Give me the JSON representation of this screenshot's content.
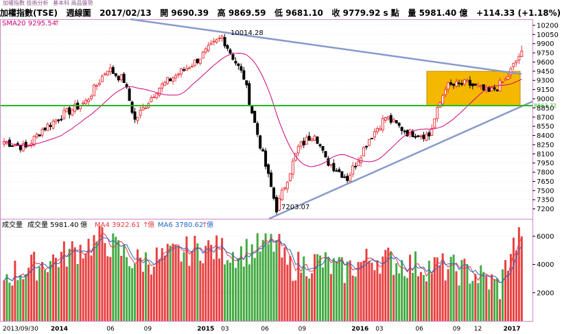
{
  "tabs": {
    "items": [
      "加權指數 技術分析",
      "基本科 商品盤勢"
    ]
  },
  "header": {
    "title": "加權指數(TSE)",
    "period": "週線圖",
    "date": "2017/02/13",
    "open_label": "開",
    "open": "9690.39",
    "high_label": "高",
    "high": "9869.59",
    "low_label": "低",
    "low": "9681.10",
    "close_label": "收",
    "close": "9779.92",
    "unit_label": "s 點",
    "volume_label": "量",
    "volume": "5981.40",
    "volume_unit": "億",
    "change": "+114.33 (+1.18%)"
  },
  "price_panel": {
    "sma_label": "SMA20 9295.54",
    "max_label": "10014.28",
    "min_label": "7203.07",
    "support_value_label": "8863.72"
  },
  "volume_panel": {
    "label1": "成交量",
    "label2": "成交量 5981.40",
    "label2_unit": "億",
    "ma4_label": "MA4 3922.61",
    "ma4_unit": "億",
    "ma6_label": "MA6 3780.62",
    "ma6_unit": "億"
  },
  "colors": {
    "up": "#e8383d",
    "down": "#000000",
    "vol_up": "#e84040",
    "vol_down": "#44aa44",
    "sma": "#d0007a",
    "support": "#22bb22",
    "trend": "#8899cc",
    "highlight": "#f5b800"
  },
  "chart_data": {
    "type": "candlestick",
    "price_axis": {
      "ticks": [
        7200,
        7350,
        7500,
        7650,
        7800,
        7950,
        8100,
        8250,
        8400,
        8550,
        8700,
        8850,
        9000,
        9150,
        9300,
        9450,
        9600,
        9750,
        9900,
        10050,
        10200
      ],
      "range": [
        7050,
        10300
      ]
    },
    "volume_axis": {
      "ticks": [
        2000,
        4000,
        6000
      ],
      "range": [
        0,
        6500
      ]
    },
    "x_axis": {
      "labels": [
        "2013/09/30",
        "2014",
        "06",
        "09",
        "2015",
        "03",
        "06",
        "09",
        "2016",
        "03",
        "06",
        "09",
        "12",
        "2017"
      ]
    },
    "horizontal_line": 8863.72,
    "sma_last": 9295.54,
    "annotations": {
      "high": 10014.28,
      "low": 7203.07
    },
    "last_bar": {
      "date": "2017/02/13",
      "open": 9690.39,
      "high": 9869.59,
      "low": 9681.1,
      "close": 9779.92,
      "volume": 5981.4,
      "ma4": 3922.61,
      "ma6": 3780.62
    },
    "series_anchors": {
      "weeks": [
        0,
        8,
        14,
        22,
        30,
        38,
        44,
        48,
        56,
        62,
        70,
        80,
        88,
        92,
        100,
        108,
        114,
        118,
        126,
        134,
        140,
        148,
        156,
        162,
        170,
        178,
        184,
        190
      ],
      "close": [
        8300,
        8200,
        8500,
        8750,
        8950,
        9500,
        9300,
        8650,
        9150,
        9350,
        9600,
        10014,
        9350,
        8600,
        7203,
        8200,
        8450,
        8000,
        7700,
        8350,
        8700,
        8450,
        8400,
        9200,
        9250,
        9100,
        9300,
        9780
      ]
    },
    "volume_profile": {
      "weeks": [
        0,
        10,
        20,
        36,
        48,
        60,
        72,
        86,
        100,
        104,
        116,
        124,
        136,
        148,
        160,
        172,
        182,
        186,
        190
      ],
      "values": [
        3200,
        3800,
        4500,
        5800,
        4200,
        4500,
        5200,
        4800,
        5500,
        3800,
        4200,
        3500,
        4500,
        4000,
        3800,
        3400,
        2400,
        5000,
        5981
      ]
    }
  }
}
